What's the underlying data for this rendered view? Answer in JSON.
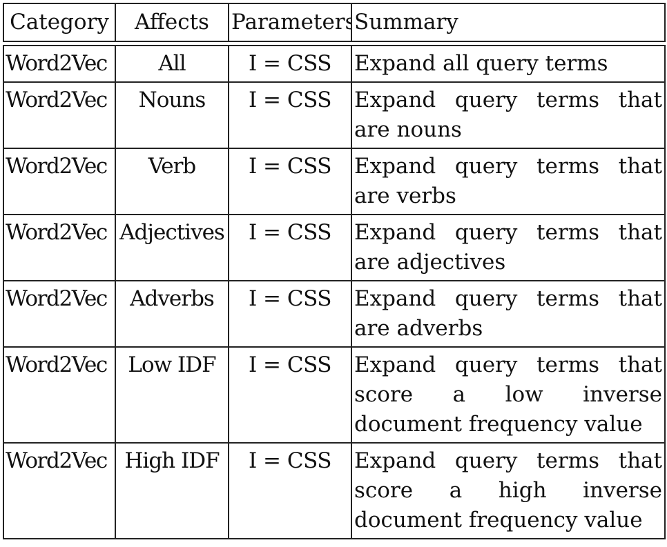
{
  "table": {
    "headers": {
      "category": "Category",
      "affects": "Affects",
      "parameters": "Parameters",
      "summary": "Summary"
    },
    "rows": [
      {
        "category": "Word2Vec",
        "affects": "All",
        "parameters": "I = CSS",
        "summary": "Expand all query terms"
      },
      {
        "category": "Word2Vec",
        "affects": "Nouns",
        "parameters": "I = CSS",
        "summary": "Expand query terms that are nouns"
      },
      {
        "category": "Word2Vec",
        "affects": "Verb",
        "parameters": "I = CSS",
        "summary": "Expand query terms that are verbs"
      },
      {
        "category": "Word2Vec",
        "affects": "Adjectives",
        "parameters": "I = CSS",
        "summary": "Expand query terms that are adjectives"
      },
      {
        "category": "Word2Vec",
        "affects": "Adverbs",
        "parameters": "I = CSS",
        "summary": "Expand query terms that are adverbs"
      },
      {
        "category": "Word2Vec",
        "affects": "Low IDF",
        "parameters": "I = CSS",
        "summary": "Expand query terms that score a low inverse document frequency value"
      },
      {
        "category": "Word2Vec",
        "affects": "High IDF",
        "parameters": "I = CSS",
        "summary": "Expand query terms that score a high inverse document frequency value"
      }
    ]
  }
}
